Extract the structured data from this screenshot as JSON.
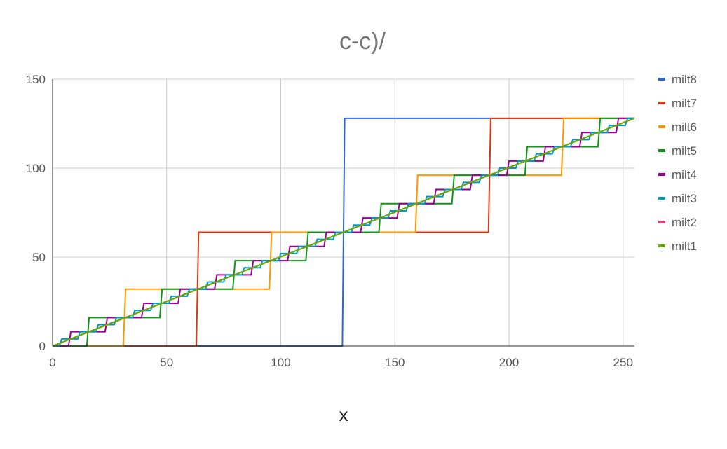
{
  "chart_data": {
    "type": "line",
    "title": "c-c)/",
    "xlabel": "x",
    "ylabel": "",
    "xlim": [
      0,
      255
    ],
    "ylim": [
      0,
      150
    ],
    "xticks": [
      0,
      50,
      100,
      150,
      200,
      250
    ],
    "yticks": [
      0,
      50,
      100,
      150
    ],
    "grid": true,
    "legend_position": "right",
    "line_shape": "step",
    "series": [
      {
        "name": "milt8",
        "color": "#3366cc",
        "x": [
          0,
          127,
          128,
          255
        ],
        "y": [
          0,
          0,
          128,
          128
        ]
      },
      {
        "name": "milt7",
        "color": "#dc3912",
        "x": [
          0,
          63,
          64,
          191,
          192,
          255
        ],
        "y": [
          0,
          0,
          64,
          64,
          128,
          128
        ]
      },
      {
        "name": "milt6",
        "color": "#ff9900",
        "x": [
          0,
          31,
          32,
          95,
          96,
          159,
          160,
          223,
          224,
          255
        ],
        "y": [
          0,
          0,
          32,
          32,
          64,
          64,
          96,
          96,
          128,
          128
        ]
      },
      {
        "name": "milt5",
        "color": "#109618",
        "x": [
          0,
          15,
          16,
          47,
          48,
          79,
          80,
          111,
          112,
          143,
          144,
          175,
          176,
          207,
          208,
          239,
          240,
          255
        ],
        "y": [
          0,
          0,
          16,
          16,
          32,
          32,
          48,
          48,
          64,
          64,
          80,
          80,
          96,
          96,
          112,
          112,
          128,
          128
        ]
      },
      {
        "name": "milt4",
        "color": "#990099",
        "x": [
          0,
          7,
          8,
          23,
          24,
          39,
          40,
          55,
          56,
          71,
          72,
          87,
          88,
          103,
          104,
          119,
          120,
          135,
          136,
          151,
          152,
          167,
          168,
          183,
          184,
          199,
          200,
          215,
          216,
          231,
          232,
          247,
          248,
          255
        ],
        "y": [
          0,
          0,
          8,
          8,
          16,
          16,
          24,
          24,
          32,
          32,
          40,
          40,
          48,
          48,
          56,
          56,
          64,
          64,
          72,
          72,
          80,
          80,
          88,
          88,
          96,
          96,
          104,
          104,
          112,
          112,
          120,
          120,
          128,
          128
        ]
      },
      {
        "name": "milt3",
        "color": "#0099c6",
        "x": [
          0,
          3,
          4,
          11,
          12,
          19,
          20,
          27,
          28,
          35,
          36,
          43,
          44,
          51,
          52,
          59,
          60,
          67,
          68,
          75,
          76,
          83,
          84,
          91,
          92,
          99,
          100,
          107,
          108,
          115,
          116,
          123,
          124,
          131,
          132,
          139,
          140,
          147,
          148,
          155,
          156,
          163,
          164,
          171,
          172,
          179,
          180,
          187,
          188,
          195,
          196,
          203,
          204,
          211,
          212,
          219,
          220,
          227,
          228,
          235,
          236,
          243,
          244,
          251,
          252,
          255
        ],
        "y": [
          0,
          0,
          4,
          4,
          8,
          8,
          12,
          12,
          16,
          16,
          20,
          20,
          24,
          24,
          28,
          28,
          32,
          32,
          36,
          36,
          40,
          40,
          44,
          44,
          48,
          48,
          52,
          52,
          56,
          56,
          60,
          60,
          64,
          64,
          68,
          68,
          72,
          72,
          76,
          76,
          80,
          80,
          84,
          84,
          88,
          88,
          92,
          92,
          96,
          96,
          100,
          100,
          104,
          104,
          108,
          108,
          112,
          112,
          116,
          116,
          120,
          120,
          124,
          124,
          128,
          128
        ]
      },
      {
        "name": "milt2",
        "color": "#dd4477",
        "x": [
          0,
          255
        ],
        "y": [
          0,
          128
        ]
      },
      {
        "name": "milt1",
        "color": "#66aa00",
        "x": [
          0,
          255
        ],
        "y": [
          0,
          128
        ]
      }
    ]
  }
}
